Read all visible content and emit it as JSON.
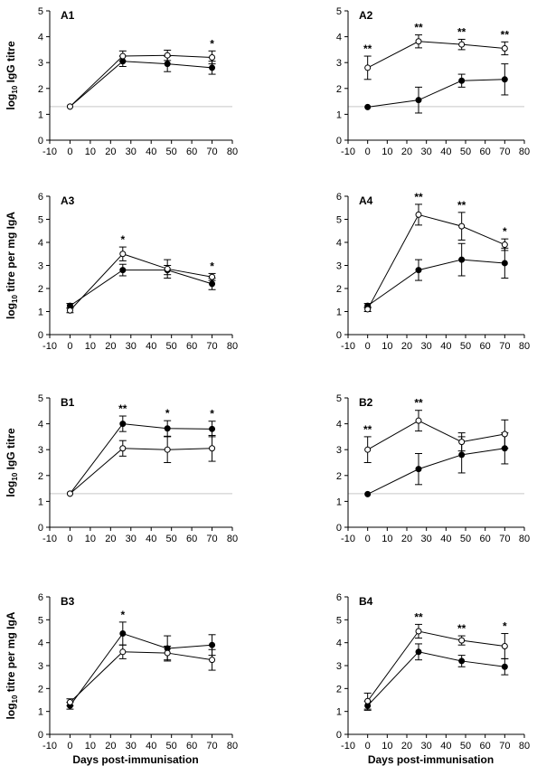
{
  "shared_y_labels": {
    "igg": "log10 IgG titre",
    "iga": "log10 titre per mg IgA"
  },
  "shared_x_label": "Days post-immunisation",
  "chart_data": [
    {
      "panel": "A1",
      "type": "line",
      "title": "A1",
      "ylabel": "log10 IgG titre",
      "xlabel": "",
      "xlim": [
        -10,
        80
      ],
      "ylim": [
        0,
        5
      ],
      "x_ticks": [
        "-10",
        "0",
        "10",
        "20",
        "30",
        "40",
        "50",
        "60",
        "70",
        "80"
      ],
      "y_ticks": [
        "0",
        "1",
        "2",
        "3",
        "4",
        "5"
      ],
      "reference_line": 1.3,
      "series": [
        {
          "marker": "open",
          "x": [
            0,
            26,
            48,
            70
          ],
          "y": [
            1.3,
            3.25,
            3.28,
            3.2
          ],
          "err": [
            0,
            0.2,
            0.2,
            0.25
          ],
          "sig": [
            "",
            "",
            "",
            "*"
          ]
        },
        {
          "marker": "filled",
          "x": [
            0,
            26,
            48,
            70
          ],
          "y": [
            1.3,
            3.05,
            2.95,
            2.8
          ],
          "err": [
            0,
            0.2,
            0.3,
            0.25
          ],
          "sig": [
            "",
            "",
            "",
            ""
          ]
        }
      ]
    },
    {
      "panel": "A2",
      "type": "line",
      "title": "A2",
      "ylabel": "",
      "xlabel": "",
      "xlim": [
        -10,
        80
      ],
      "ylim": [
        0,
        5
      ],
      "x_ticks": [
        "-10",
        "0",
        "10",
        "20",
        "30",
        "40",
        "50",
        "60",
        "70",
        "80"
      ],
      "y_ticks": [
        "0",
        "1",
        "2",
        "3",
        "4",
        "5"
      ],
      "reference_line": 1.3,
      "series": [
        {
          "marker": "open",
          "x": [
            0,
            26,
            48,
            70
          ],
          "y": [
            2.8,
            3.82,
            3.7,
            3.55
          ],
          "err": [
            0.45,
            0.25,
            0.2,
            0.25
          ],
          "sig": [
            "**",
            "**",
            "**",
            "**"
          ]
        },
        {
          "marker": "filled",
          "x": [
            0,
            26,
            48,
            70
          ],
          "y": [
            1.28,
            1.55,
            2.3,
            2.35
          ],
          "err": [
            0,
            0.5,
            0.25,
            0.6
          ],
          "sig": [
            "",
            "",
            "",
            ""
          ]
        }
      ]
    },
    {
      "panel": "A3",
      "type": "line",
      "title": "A3",
      "ylabel": "log10 titre per mg IgA",
      "xlabel": "",
      "xlim": [
        -10,
        80
      ],
      "ylim": [
        0,
        6
      ],
      "x_ticks": [
        "-10",
        "0",
        "10",
        "20",
        "30",
        "40",
        "50",
        "60",
        "70",
        "80"
      ],
      "y_ticks": [
        "0",
        "1",
        "2",
        "3",
        "4",
        "5",
        "6"
      ],
      "series": [
        {
          "marker": "open",
          "x": [
            0,
            26,
            48,
            70
          ],
          "y": [
            1.05,
            3.5,
            2.85,
            2.5
          ],
          "err": [
            0.1,
            0.3,
            0.4,
            0.15
          ],
          "sig": [
            "",
            "*",
            "",
            "*"
          ]
        },
        {
          "marker": "filled",
          "x": [
            0,
            26,
            48,
            70
          ],
          "y": [
            1.25,
            2.8,
            2.8,
            2.2
          ],
          "err": [
            0.1,
            0.25,
            0.2,
            0.25
          ],
          "sig": [
            "",
            "",
            "",
            ""
          ]
        }
      ]
    },
    {
      "panel": "A4",
      "type": "line",
      "title": "A4",
      "ylabel": "",
      "xlabel": "",
      "xlim": [
        -10,
        80
      ],
      "ylim": [
        0,
        6
      ],
      "x_ticks": [
        "-10",
        "0",
        "10",
        "20",
        "30",
        "40",
        "50",
        "60",
        "70",
        "80"
      ],
      "y_ticks": [
        "0",
        "1",
        "2",
        "3",
        "4",
        "5",
        "6"
      ],
      "series": [
        {
          "marker": "open",
          "x": [
            0,
            26,
            48,
            70
          ],
          "y": [
            1.1,
            5.2,
            4.7,
            3.9
          ],
          "err": [
            0.1,
            0.45,
            0.6,
            0.25
          ],
          "sig": [
            "",
            "**",
            "**",
            "*"
          ]
        },
        {
          "marker": "filled",
          "x": [
            0,
            26,
            48,
            70
          ],
          "y": [
            1.25,
            2.8,
            3.25,
            3.1
          ],
          "err": [
            0.1,
            0.45,
            0.7,
            0.65
          ],
          "sig": [
            "",
            "",
            "",
            ""
          ]
        }
      ]
    },
    {
      "panel": "B1",
      "type": "line",
      "title": "B1",
      "ylabel": "log10 IgG titre",
      "xlabel": "",
      "xlim": [
        -10,
        80
      ],
      "ylim": [
        0,
        5
      ],
      "x_ticks": [
        "-10",
        "0",
        "10",
        "20",
        "30",
        "40",
        "50",
        "60",
        "70",
        "80"
      ],
      "y_ticks": [
        "0",
        "1",
        "2",
        "3",
        "4",
        "5"
      ],
      "reference_line": 1.3,
      "series": [
        {
          "marker": "open",
          "x": [
            0,
            26,
            48,
            70
          ],
          "y": [
            1.3,
            3.05,
            3.0,
            3.05
          ],
          "err": [
            0,
            0.3,
            0.5,
            0.5
          ],
          "sig": [
            "",
            "",
            "",
            ""
          ]
        },
        {
          "marker": "filled",
          "x": [
            0,
            26,
            48,
            70
          ],
          "y": [
            1.3,
            4.0,
            3.82,
            3.8
          ],
          "err": [
            0,
            0.3,
            0.3,
            0.3
          ],
          "sig": [
            "",
            "**",
            "*",
            "*"
          ]
        }
      ]
    },
    {
      "panel": "B2",
      "type": "line",
      "title": "B2",
      "ylabel": "",
      "xlabel": "",
      "xlim": [
        -10,
        80
      ],
      "ylim": [
        0,
        5
      ],
      "x_ticks": [
        "-10",
        "0",
        "10",
        "20",
        "30",
        "40",
        "50",
        "60",
        "70",
        "80"
      ],
      "y_ticks": [
        "0",
        "1",
        "2",
        "3",
        "4",
        "5"
      ],
      "reference_line": 1.3,
      "series": [
        {
          "marker": "open",
          "x": [
            0,
            26,
            48,
            70
          ],
          "y": [
            3.0,
            4.12,
            3.3,
            3.6
          ],
          "err": [
            0.5,
            0.4,
            0.35,
            0.55
          ],
          "sig": [
            "**",
            "**",
            "",
            ""
          ]
        },
        {
          "marker": "filled",
          "x": [
            0,
            26,
            48,
            70
          ],
          "y": [
            1.28,
            2.25,
            2.8,
            3.05
          ],
          "err": [
            0,
            0.6,
            0.7,
            0.6
          ],
          "sig": [
            "",
            "",
            "",
            ""
          ]
        }
      ]
    },
    {
      "panel": "B3",
      "type": "line",
      "title": "B3",
      "ylabel": "log10 titre per mg IgA",
      "xlabel": "Days post-immunisation",
      "xlim": [
        -10,
        80
      ],
      "ylim": [
        0,
        6
      ],
      "x_ticks": [
        "-10",
        "0",
        "10",
        "20",
        "30",
        "40",
        "50",
        "60",
        "70",
        "80"
      ],
      "y_ticks": [
        "0",
        "1",
        "2",
        "3",
        "4",
        "5",
        "6"
      ],
      "series": [
        {
          "marker": "open",
          "x": [
            0,
            26,
            48,
            70
          ],
          "y": [
            1.4,
            3.6,
            3.55,
            3.25
          ],
          "err": [
            0.15,
            0.3,
            0.3,
            0.45
          ],
          "sig": [
            "",
            "",
            "",
            ""
          ]
        },
        {
          "marker": "filled",
          "x": [
            0,
            26,
            48,
            70
          ],
          "y": [
            1.25,
            4.4,
            3.75,
            3.9
          ],
          "err": [
            0.15,
            0.5,
            0.55,
            0.45
          ],
          "sig": [
            "",
            "*",
            "",
            ""
          ]
        }
      ]
    },
    {
      "panel": "B4",
      "type": "line",
      "title": "B4",
      "ylabel": "",
      "xlabel": "Days post-immunisation",
      "xlim": [
        -10,
        80
      ],
      "ylim": [
        0,
        6
      ],
      "x_ticks": [
        "-10",
        "0",
        "10",
        "20",
        "30",
        "40",
        "50",
        "60",
        "70",
        "80"
      ],
      "y_ticks": [
        "0",
        "1",
        "2",
        "3",
        "4",
        "5",
        "6"
      ],
      "series": [
        {
          "marker": "open",
          "x": [
            0,
            26,
            48,
            70
          ],
          "y": [
            1.45,
            4.5,
            4.1,
            3.85
          ],
          "err": [
            0.35,
            0.3,
            0.2,
            0.55
          ],
          "sig": [
            "",
            "**",
            "**",
            "*"
          ]
        },
        {
          "marker": "filled",
          "x": [
            0,
            26,
            48,
            70
          ],
          "y": [
            1.25,
            3.6,
            3.2,
            2.95
          ],
          "err": [
            0.2,
            0.35,
            0.25,
            0.35
          ],
          "sig": [
            "",
            "",
            "",
            ""
          ]
        }
      ]
    }
  ]
}
